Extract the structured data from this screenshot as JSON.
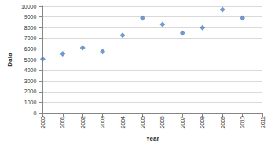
{
  "chart_data": {
    "type": "scatter",
    "x_label": "Year",
    "y_label": "Data",
    "x": [
      2000,
      2001,
      2002,
      2003,
      2004,
      2005,
      2006,
      2007,
      2008,
      2009,
      2010
    ],
    "values": [
      5050,
      5550,
      6100,
      5750,
      7300,
      8900,
      8300,
      7500,
      8000,
      9700,
      8900
    ],
    "color": "#4f81bd",
    "marker": "diamond",
    "xlim": [
      2000,
      2011
    ],
    "xticks": [
      2000,
      2001,
      2002,
      2003,
      2004,
      2005,
      2006,
      2007,
      2008,
      2009,
      2010,
      2011
    ],
    "ylim": [
      0,
      10000
    ],
    "yticks": [
      0,
      1000,
      2000,
      3000,
      4000,
      5000,
      6000,
      7000,
      8000,
      9000,
      10000
    ],
    "grid": true
  }
}
